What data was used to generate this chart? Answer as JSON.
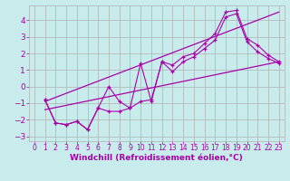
{
  "xlabel": "Windchill (Refroidissement éolien,°C)",
  "background_color": "#c8ecec",
  "grid_color": "#b0b0b0",
  "line_color": "#aa00aa",
  "xlim": [
    -0.5,
    23.5
  ],
  "ylim": [
    -3.3,
    4.9
  ],
  "xticks": [
    0,
    1,
    2,
    3,
    4,
    5,
    6,
    7,
    8,
    9,
    10,
    11,
    12,
    13,
    14,
    15,
    16,
    17,
    18,
    19,
    20,
    21,
    22,
    23
  ],
  "yticks": [
    -3,
    -2,
    -1,
    0,
    1,
    2,
    3,
    4
  ],
  "line1_x": [
    1,
    2,
    3,
    4,
    5,
    6,
    7,
    8,
    9,
    10,
    11,
    12,
    13,
    14,
    15,
    16,
    17,
    18,
    19,
    20,
    21,
    22,
    23
  ],
  "line1_y": [
    -0.8,
    -2.2,
    -2.3,
    -2.1,
    -2.6,
    -1.3,
    0.0,
    -0.9,
    -1.3,
    1.4,
    -0.9,
    1.5,
    1.3,
    1.8,
    2.0,
    2.6,
    3.2,
    4.5,
    4.6,
    2.9,
    2.5,
    1.9,
    1.5
  ],
  "line2_x": [
    1,
    2,
    3,
    4,
    5,
    6,
    7,
    8,
    9,
    10,
    11,
    12,
    13,
    14,
    15,
    16,
    17,
    18,
    19,
    20,
    21,
    22,
    23
  ],
  "line2_y": [
    -0.8,
    -2.2,
    -2.3,
    -2.1,
    -2.6,
    -1.3,
    -1.5,
    -1.5,
    -1.3,
    -0.9,
    -0.8,
    1.5,
    0.9,
    1.5,
    1.8,
    2.3,
    2.8,
    4.2,
    4.4,
    2.7,
    2.1,
    1.7,
    1.4
  ],
  "trend1_x": [
    1,
    23
  ],
  "trend1_y": [
    -0.9,
    4.5
  ],
  "trend2_x": [
    1,
    23
  ],
  "trend2_y": [
    -1.4,
    1.5
  ],
  "label_fontsize": 6.5,
  "tick_fontsize": 6
}
